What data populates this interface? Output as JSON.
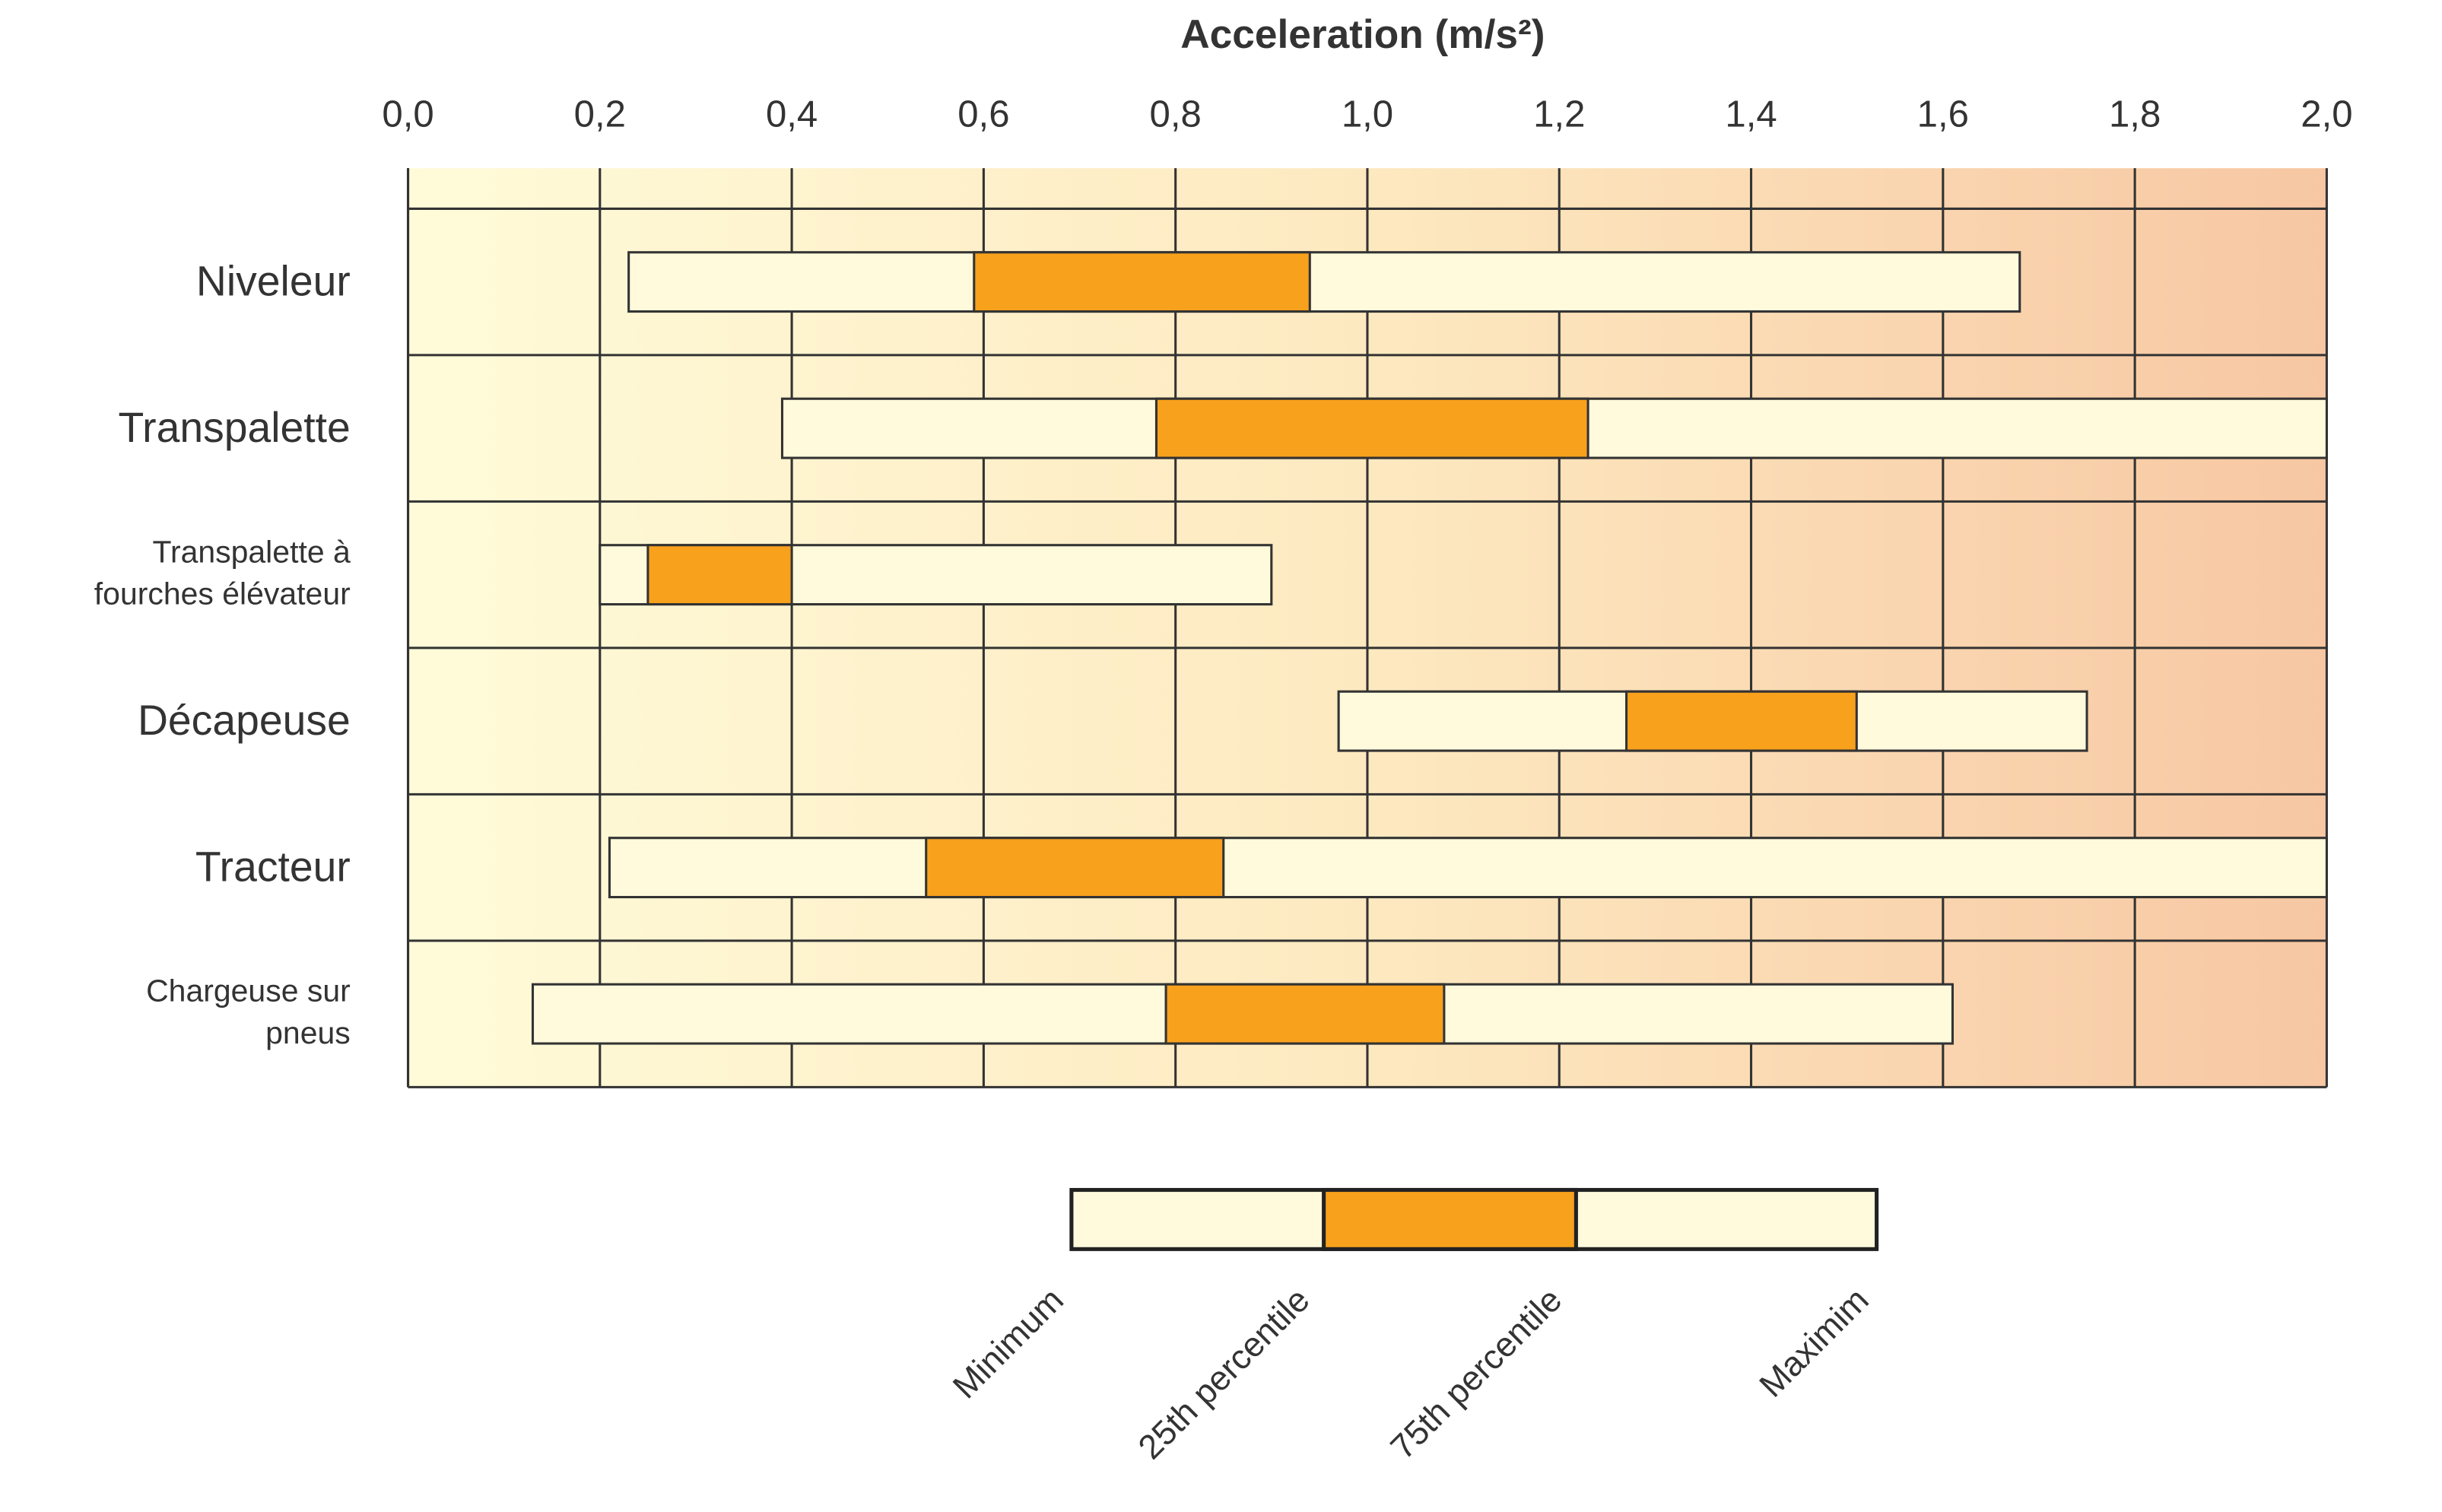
{
  "chart_data": {
    "type": "range_bar",
    "title": "Acceleration (m/s²)",
    "categories": [
      "Niveleur",
      "Transpalette",
      "Transpalette à\nfourches élévateur",
      "Décapeuse",
      "Tracteur",
      "Chargeuse sur\npneus"
    ],
    "series": [
      {
        "name": "Minimum",
        "values": [
          0.23,
          0.39,
          0.2,
          0.97,
          0.21,
          0.13
        ]
      },
      {
        "name": "25th percentile",
        "values": [
          0.59,
          0.78,
          0.25,
          1.27,
          0.54,
          0.79
        ]
      },
      {
        "name": "75th percentile",
        "values": [
          0.94,
          1.23,
          0.4,
          1.51,
          0.85,
          1.08
        ]
      },
      {
        "name": "Maximim",
        "values": [
          1.68,
          2.0,
          0.9,
          1.75,
          2.0,
          1.61
        ]
      }
    ],
    "outer_color": "#fffadc",
    "inner_color": "#f8a11c",
    "xlim": [
      0,
      2
    ],
    "xticks": [
      {
        "value": 0,
        "label": "0,0"
      },
      {
        "value": 0.2,
        "label": "0,2"
      },
      {
        "value": 0.4,
        "label": "0,4"
      },
      {
        "value": 0.6,
        "label": "0,6"
      },
      {
        "value": 0.8,
        "label": "0,8"
      },
      {
        "value": 1,
        "label": "1,0"
      },
      {
        "value": 1.2,
        "label": "1,2"
      },
      {
        "value": 1.4,
        "label": "1,4"
      },
      {
        "value": 1.6,
        "label": "1,6"
      },
      {
        "value": 1.8,
        "label": "1,8"
      },
      {
        "value": 2,
        "label": "2,0"
      }
    ],
    "grid": true
  }
}
